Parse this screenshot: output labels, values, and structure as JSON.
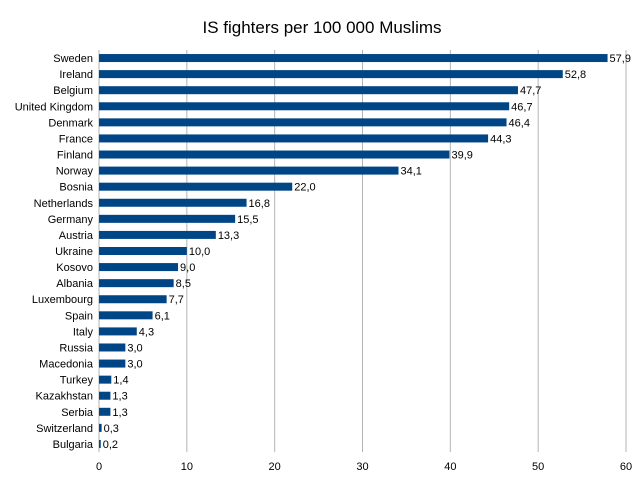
{
  "chart_data": {
    "type": "bar",
    "orientation": "horizontal",
    "title": "IS fighters per 100 000 Muslims",
    "xlabel": "",
    "ylabel": "",
    "xlim": [
      0,
      60
    ],
    "x_ticks": [
      0,
      10,
      20,
      30,
      40,
      50,
      60
    ],
    "grid": "vertical",
    "bar_color": "#004586",
    "categories": [
      "Sweden",
      "Ireland",
      "Belgium",
      "United Kingdom",
      "Denmark",
      "France",
      "Finland",
      "Norway",
      "Bosnia",
      "Netherlands",
      "Germany",
      "Austria",
      "Ukraine",
      "Kosovo",
      "Albania",
      "Luxembourg",
      "Spain",
      "Italy",
      "Russia",
      "Macedonia",
      "Turkey",
      "Kazakhstan",
      "Serbia",
      "Switzerland",
      "Bulgaria"
    ],
    "values": [
      57.9,
      52.8,
      47.7,
      46.7,
      46.4,
      44.3,
      39.9,
      34.1,
      22.0,
      16.8,
      15.5,
      13.3,
      10.0,
      9.0,
      8.5,
      7.7,
      6.1,
      4.3,
      3.0,
      3.0,
      1.4,
      1.3,
      1.3,
      0.3,
      0.2
    ],
    "value_labels": [
      "57,9",
      "52,8",
      "47,7",
      "46,7",
      "46,4",
      "44,3",
      "39,9",
      "34,1",
      "22,0",
      "16,8",
      "15,5",
      "13,3",
      "10,0",
      "9,0",
      "8,5",
      "7,7",
      "6,1",
      "4,3",
      "3,0",
      "3,0",
      "1,4",
      "1,3",
      "1,3",
      "0,3",
      "0,2"
    ]
  }
}
